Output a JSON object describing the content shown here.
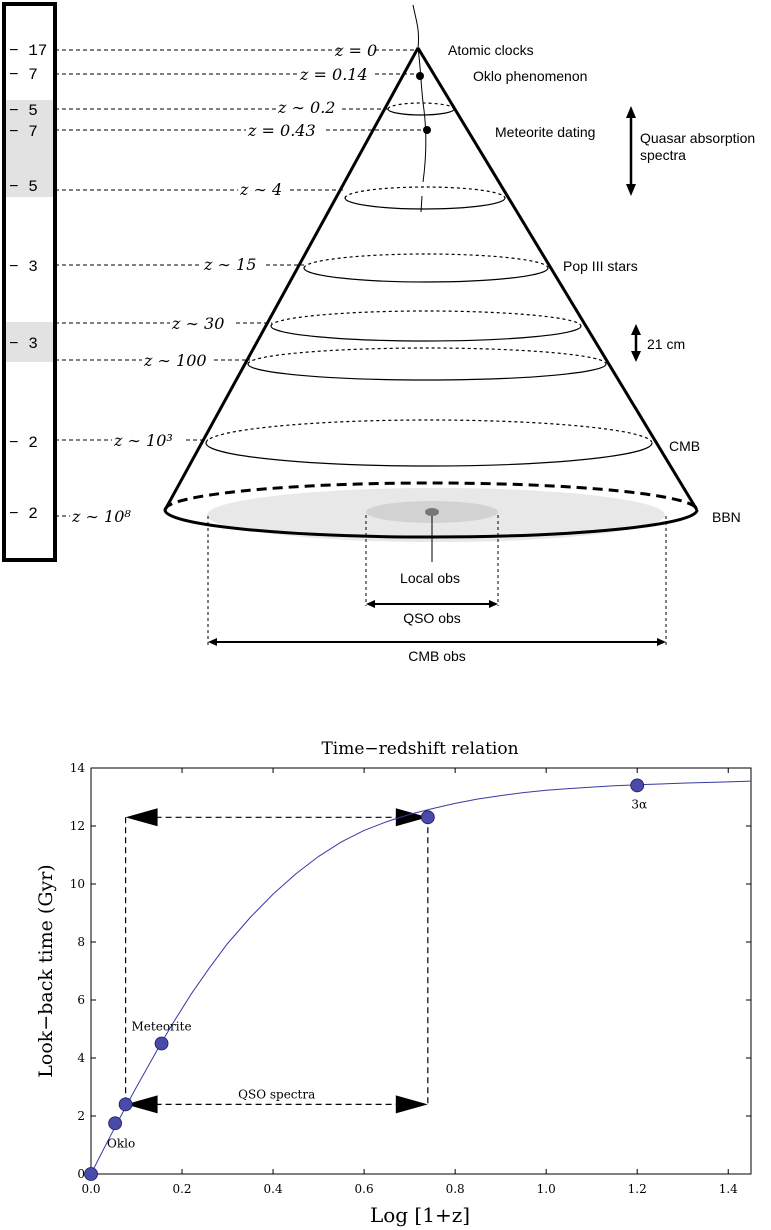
{
  "cone_diagram": {
    "left_scale": [
      {
        "value": "− 17"
      },
      {
        "value": "− 7"
      },
      {
        "value": "− 5"
      },
      {
        "value": "− 7"
      },
      {
        "value": "− 5"
      },
      {
        "value": "− 3"
      },
      {
        "value": "− 3"
      },
      {
        "value": "− 2"
      },
      {
        "value": "− 2"
      }
    ],
    "redshift_labels": [
      {
        "text": "z = 0"
      },
      {
        "text": "z = 0.14"
      },
      {
        "text": "z ∼ 0.2"
      },
      {
        "text": "z = 0.43"
      },
      {
        "text": "z ∼ 4"
      },
      {
        "text": "z ∼ 15"
      },
      {
        "text": "z ∼ 30"
      },
      {
        "text": "z ∼ 100"
      },
      {
        "text": "z ∼ 10³"
      },
      {
        "text": "z ∼ 10⁸"
      }
    ],
    "probe_labels": {
      "atomic_clocks": "Atomic clocks",
      "oklo": "Oklo phenomenon",
      "meteorite": "Meteorite dating",
      "quasar_line1": "Quasar absorption",
      "quasar_line2": "spectra",
      "pop3": "Pop III stars",
      "cm21": "21 cm",
      "cmb": "CMB",
      "bbn": "BBN"
    },
    "observation_labels": {
      "local": "Local obs",
      "qso": "QSO obs",
      "cmb": "CMB obs"
    },
    "colors": {
      "line": "#000000",
      "shade_band": "#e2e2e2",
      "outer_disk": "#e8e8e8",
      "inner_disk": "#d2d2d2",
      "core": "#777777"
    }
  },
  "chart_data": {
    "type": "line",
    "title": "Time−redshift relation",
    "xlabel": "Log [1+z]",
    "ylabel": "Look−back time (Gyr)",
    "xlim": [
      0,
      1.45
    ],
    "ylim": [
      0,
      14
    ],
    "xticks": [
      "0.0",
      "0.2",
      "0.4",
      "0.6",
      "0.8",
      "1.0",
      "1.2",
      "1.4"
    ],
    "yticks": [
      "0",
      "2",
      "4",
      "6",
      "8",
      "10",
      "12",
      "14"
    ],
    "series": [
      {
        "x": [
          0,
          0.02,
          0.04,
          0.06,
          0.08,
          0.1,
          0.12,
          0.15,
          0.18,
          0.22,
          0.26,
          0.3,
          0.35,
          0.4,
          0.45,
          0.5,
          0.55,
          0.6,
          0.65,
          0.7,
          0.75,
          0.8,
          0.85,
          0.9,
          0.95,
          1.0,
          1.05,
          1.1,
          1.15,
          1.2,
          1.25,
          1.3,
          1.35,
          1.4,
          1.45
        ],
        "y": [
          0,
          0.62,
          1.23,
          1.83,
          2.42,
          3.0,
          3.56,
          4.4,
          5.2,
          6.2,
          7.1,
          7.95,
          8.85,
          9.65,
          10.35,
          10.95,
          11.45,
          11.85,
          12.15,
          12.4,
          12.6,
          12.78,
          12.93,
          13.05,
          13.15,
          13.23,
          13.29,
          13.34,
          13.39,
          13.42,
          13.45,
          13.48,
          13.5,
          13.52,
          13.55
        ]
      }
    ],
    "points": [
      {
        "x": 0.0,
        "y": 0.0,
        "label": ""
      },
      {
        "x": 0.053,
        "y": 1.75,
        "label": "Oklo"
      },
      {
        "x": 0.076,
        "y": 2.4,
        "label": ""
      },
      {
        "x": 0.155,
        "y": 4.5,
        "label": "Meteorite"
      },
      {
        "x": 0.74,
        "y": 12.3,
        "label": ""
      },
      {
        "x": 1.2,
        "y": 13.4,
        "label": "3α"
      }
    ],
    "annotations": {
      "qso_label": "QSO spectra",
      "box_x": [
        0.076,
        0.74
      ],
      "box_y": [
        2.4,
        12.3
      ]
    },
    "grid": false,
    "line_color": "#3a3aa0",
    "point_color": "#4a4aa8"
  }
}
